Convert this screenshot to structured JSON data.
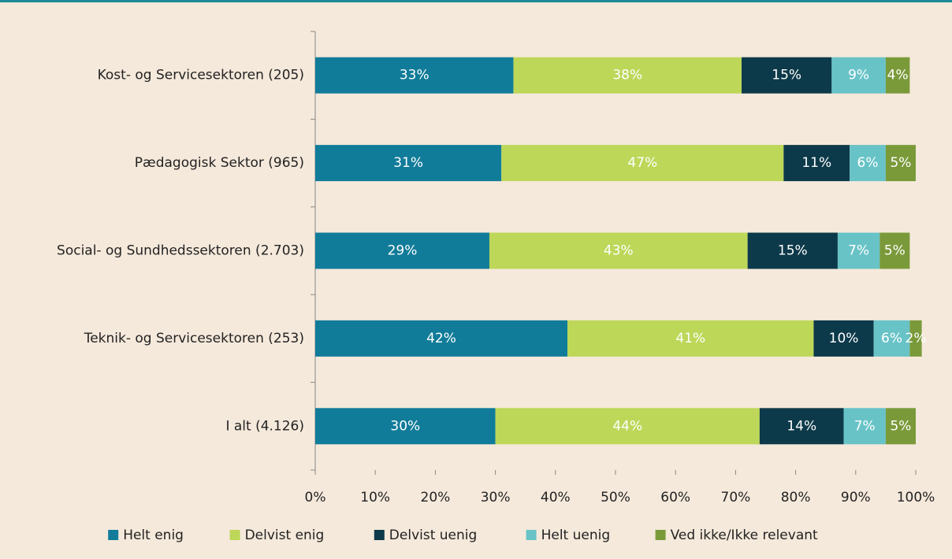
{
  "chart_data": {
    "type": "stacked_barh",
    "categories": [
      "Kost- og Servicesektoren (205)",
      "Pædagogisk Sektor (965)",
      "Social- og Sundhedssektoren (2.703)",
      "Teknik- og Servicesektoren (253)",
      "I alt (4.126)"
    ],
    "series": [
      {
        "name": "Helt enig",
        "color": "#117c99",
        "values": [
          33,
          31,
          29,
          42,
          30
        ],
        "value_labels": [
          "33%",
          "31%",
          "29%",
          "42%",
          "30%"
        ]
      },
      {
        "name": "Delvist enig",
        "color": "#bdd759",
        "values": [
          38,
          47,
          43,
          41,
          44
        ],
        "value_labels": [
          "38%",
          "47%",
          "43%",
          "41%",
          "44%"
        ]
      },
      {
        "name": "Delvist uenig",
        "color": "#0d3a4a",
        "values": [
          15,
          11,
          15,
          10,
          14
        ],
        "value_labels": [
          "15%",
          "11%",
          "15%",
          "10%",
          "14%"
        ]
      },
      {
        "name": "Helt uenig",
        "color": "#68c3c7",
        "values": [
          9,
          6,
          7,
          6,
          7
        ],
        "value_labels": [
          "9%",
          "6%",
          "7%",
          "6%",
          "7%"
        ]
      },
      {
        "name": "Ved ikke/Ikke relevant",
        "color": "#7a9a3a",
        "values": [
          4,
          5,
          5,
          2,
          5
        ],
        "value_labels": [
          "4%",
          "5%",
          "5%",
          "2%",
          "5%"
        ]
      }
    ],
    "xlim": [
      0,
      100
    ],
    "xticks": [
      {
        "value": 0,
        "label": "0%"
      },
      {
        "value": 10,
        "label": "10%"
      },
      {
        "value": 20,
        "label": "20%"
      },
      {
        "value": 30,
        "label": "30%"
      },
      {
        "value": 40,
        "label": "40%"
      },
      {
        "value": 50,
        "label": "50%"
      },
      {
        "value": 60,
        "label": "60%"
      },
      {
        "value": 70,
        "label": "70%"
      },
      {
        "value": 80,
        "label": "80%"
      },
      {
        "value": 90,
        "label": "90%"
      },
      {
        "value": 100,
        "label": "100%"
      }
    ],
    "legend": "bottom"
  }
}
